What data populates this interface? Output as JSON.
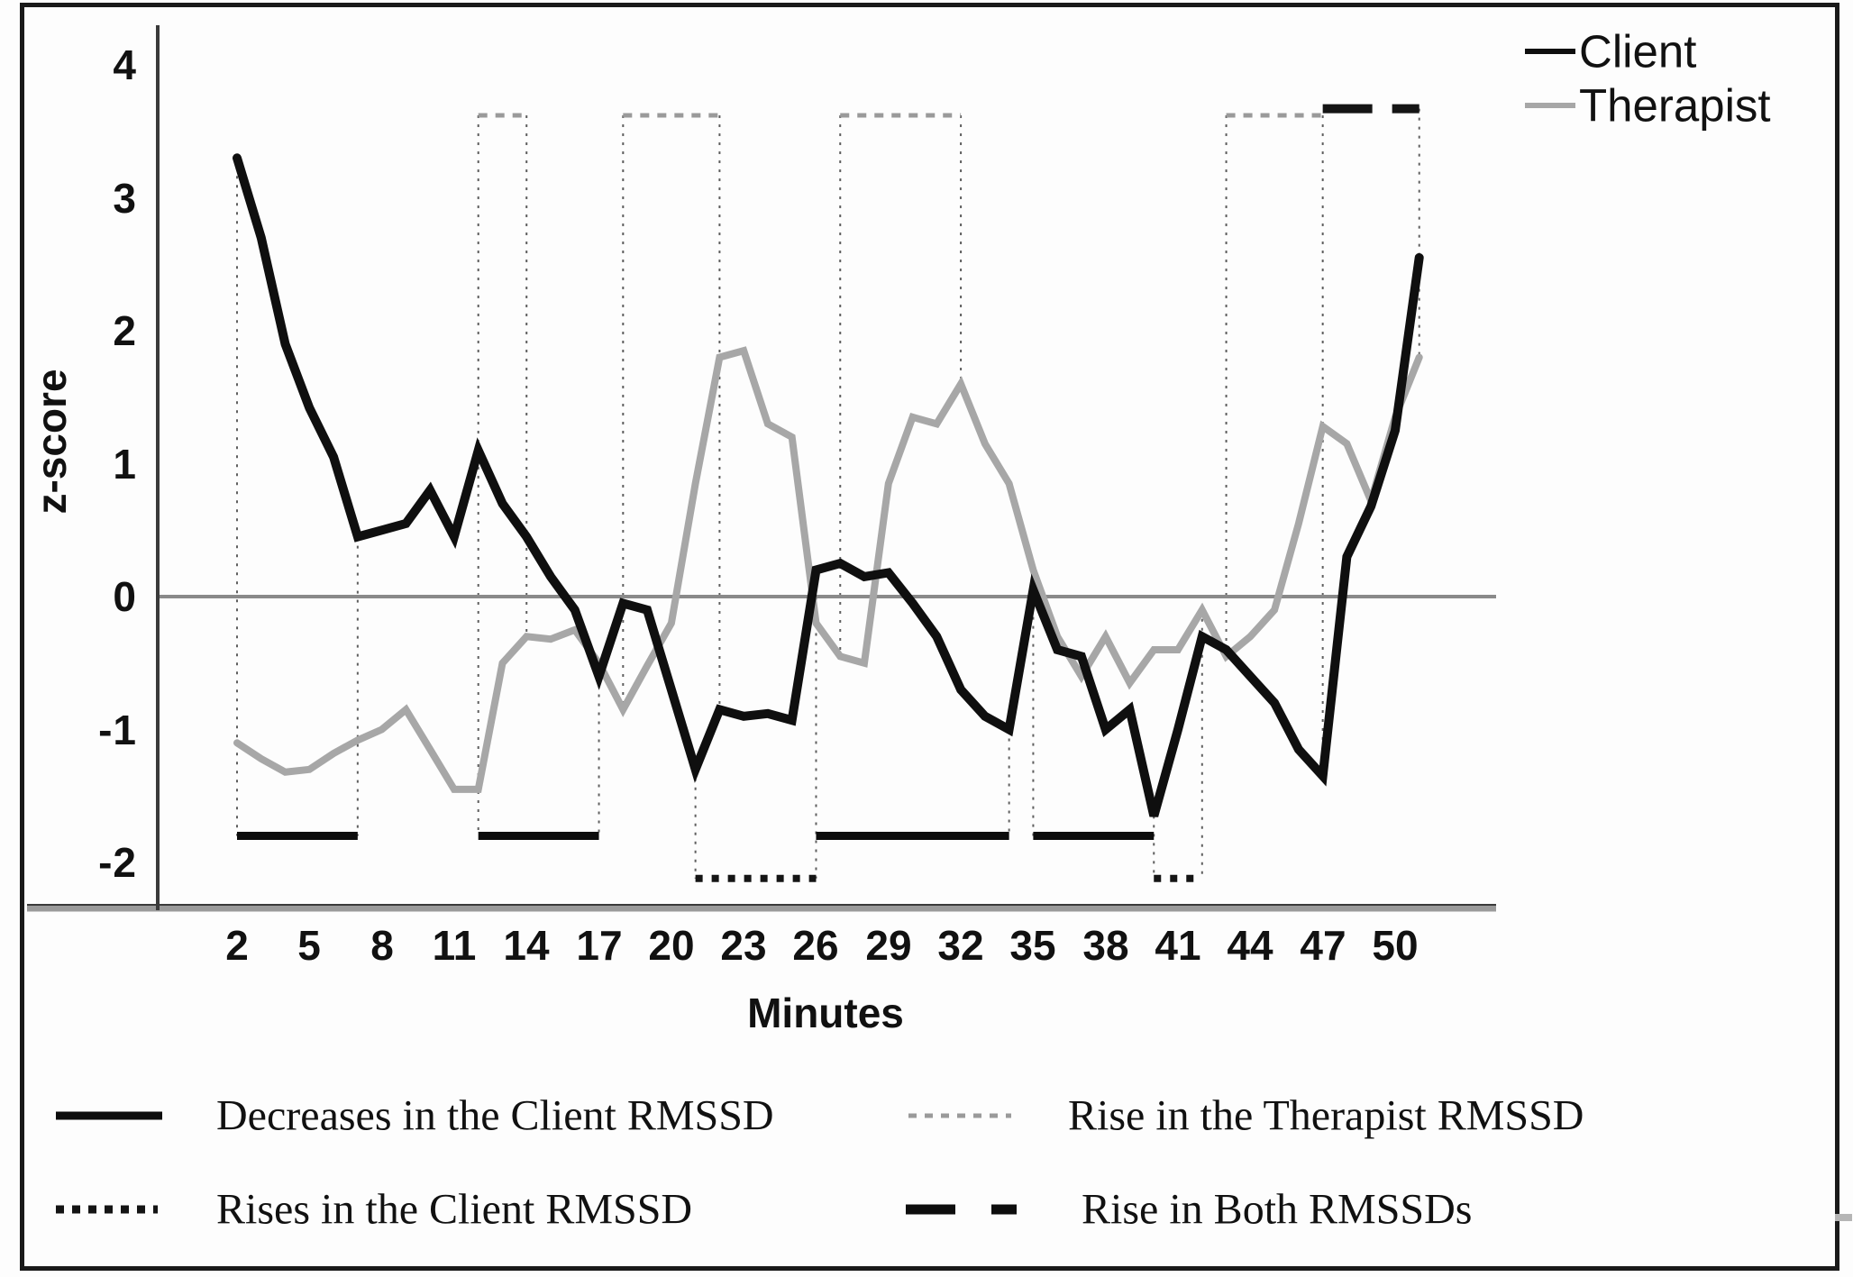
{
  "figure": {
    "xlabel": "Minutes",
    "ylabel": "z-score",
    "border_color": "#1a1a1a"
  },
  "chart_data": {
    "type": "line",
    "title": "",
    "xlabel": "Minutes",
    "ylabel": "z-score",
    "x_tick_labels": [
      "2",
      "5",
      "8",
      "11",
      "14",
      "17",
      "20",
      "23",
      "26",
      "29",
      "32",
      "35",
      "38",
      "41",
      "44",
      "47",
      "50"
    ],
    "y_tick_labels": [
      "4",
      "3",
      "2",
      "1",
      "0",
      "-1",
      "-2"
    ],
    "y_tick_values": [
      4,
      3,
      2,
      1,
      0,
      -1,
      -2
    ],
    "axis": {
      "xlim": [
        2,
        51
      ],
      "ylim": [
        -2.35,
        4.35
      ],
      "zero_line": true,
      "grid": false
    },
    "x": [
      2,
      3,
      4,
      5,
      6,
      7,
      8,
      9,
      10,
      11,
      12,
      13,
      14,
      15,
      16,
      17,
      18,
      19,
      20,
      21,
      22,
      23,
      24,
      25,
      26,
      27,
      28,
      29,
      30,
      31,
      32,
      33,
      34,
      35,
      36,
      37,
      38,
      39,
      40,
      41,
      42,
      43,
      44,
      45,
      46,
      47,
      48,
      49,
      50,
      51
    ],
    "series": [
      {
        "name": "Therapist",
        "color": "#a7a7a7",
        "line_width": 8,
        "values": [
          -1.1,
          -1.22,
          -1.32,
          -1.3,
          -1.18,
          -1.08,
          -1.0,
          -0.85,
          -1.15,
          -1.45,
          -1.45,
          -0.5,
          -0.3,
          -0.32,
          -0.25,
          -0.5,
          -0.85,
          -0.52,
          -0.2,
          0.85,
          1.8,
          1.85,
          1.3,
          1.2,
          -0.2,
          -0.45,
          -0.5,
          0.85,
          1.35,
          1.3,
          1.6,
          1.15,
          0.85,
          0.2,
          -0.3,
          -0.6,
          -0.3,
          -0.65,
          -0.4,
          -0.4,
          -0.1,
          -0.45,
          -0.3,
          -0.1,
          0.55,
          1.28,
          1.15,
          0.72,
          1.35,
          1.8
        ]
      },
      {
        "name": "Client",
        "color": "#0f0f0f",
        "line_width": 10,
        "values": [
          3.3,
          2.7,
          1.9,
          1.42,
          1.05,
          0.45,
          0.5,
          0.55,
          0.8,
          0.45,
          1.1,
          0.7,
          0.45,
          0.15,
          -0.1,
          -0.6,
          -0.05,
          -0.1,
          -0.7,
          -1.3,
          -0.85,
          -0.9,
          -0.88,
          -0.93,
          0.2,
          0.25,
          0.15,
          0.18,
          -0.05,
          -0.3,
          -0.7,
          -0.9,
          -1.0,
          0.05,
          -0.4,
          -0.45,
          -1.0,
          -0.85,
          -1.65,
          -1.0,
          -0.3,
          -0.4,
          -0.6,
          -0.8,
          -1.15,
          -1.35,
          0.3,
          0.68,
          1.25,
          2.55
        ]
      }
    ],
    "legend_top": [
      {
        "label": "Client",
        "color": "#0f0f0f",
        "style": "solid"
      },
      {
        "label": "Therapist",
        "color": "#a7a7a7",
        "style": "solid"
      }
    ],
    "annotation_bands": [
      {
        "name": "decreases-client-band",
        "style": "solid",
        "color": "#0d0d0d",
        "z": -1.8,
        "ranges": [
          [
            2,
            7
          ],
          [
            12,
            17
          ],
          [
            26,
            34
          ],
          [
            35,
            40
          ]
        ]
      },
      {
        "name": "rises-client-band",
        "style": "dotted",
        "color": "#151515",
        "z": -2.12,
        "ranges": [
          [
            21,
            26
          ],
          [
            40,
            42
          ]
        ]
      },
      {
        "name": "rise-therapist-band",
        "style": "dotted",
        "color": "#9a9a9a",
        "z": 3.62,
        "ranges": [
          [
            12,
            14
          ],
          [
            18,
            22
          ],
          [
            27,
            32
          ],
          [
            43,
            47
          ]
        ]
      },
      {
        "name": "rise-both-band",
        "style": "dashed",
        "color": "#151515",
        "z": 3.67,
        "ranges": [
          [
            47,
            51
          ]
        ]
      }
    ],
    "vertical_guides": [
      [
        2,
        3.3,
        -1.8
      ],
      [
        7,
        0.45,
        -1.8
      ],
      [
        12,
        3.62,
        -1.8
      ],
      [
        14,
        3.62,
        -0.3
      ],
      [
        17,
        -0.6,
        -1.8
      ],
      [
        18,
        3.62,
        -0.85
      ],
      [
        21,
        -1.3,
        -2.12
      ],
      [
        22,
        3.62,
        -0.85
      ],
      [
        26,
        0.2,
        -2.12
      ],
      [
        27,
        3.62,
        -0.45
      ],
      [
        32,
        3.62,
        1.6
      ],
      [
        34,
        -1.0,
        -1.8
      ],
      [
        35,
        0.05,
        -1.8
      ],
      [
        40,
        -1.65,
        -2.12
      ],
      [
        42,
        -0.1,
        -2.12
      ],
      [
        43,
        3.62,
        -0.45
      ],
      [
        47,
        3.62,
        -1.35
      ],
      [
        51,
        3.67,
        1.8
      ]
    ],
    "legend_bottom": [
      {
        "label": "Decreases in the Client RMSSD",
        "swatch": "solid-black"
      },
      {
        "label": "Rises in the Client RMSSD",
        "swatch": "dotted-black"
      },
      {
        "label": "Rise in the Therapist RMSSD",
        "swatch": "dotted-gray"
      },
      {
        "label": "Rise in Both RMSSDs",
        "swatch": "dashed-black"
      }
    ],
    "legend_position": "top-right"
  }
}
